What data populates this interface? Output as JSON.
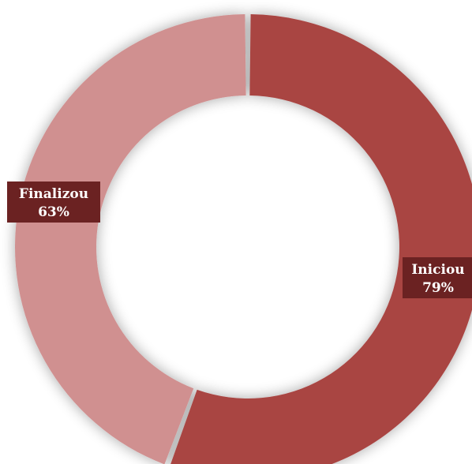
{
  "chart_data": {
    "type": "pie",
    "donut": true,
    "categories": [
      "Iniciou",
      "Finalizou"
    ],
    "values": [
      79,
      63
    ],
    "value_labels": [
      "79%",
      "63%"
    ],
    "title": "",
    "legend": "none",
    "colors": {
      "Iniciou": "#a94442",
      "Finalizou": "#d09090",
      "label_box": "#6b2222",
      "label_text": "#ffffff"
    }
  }
}
